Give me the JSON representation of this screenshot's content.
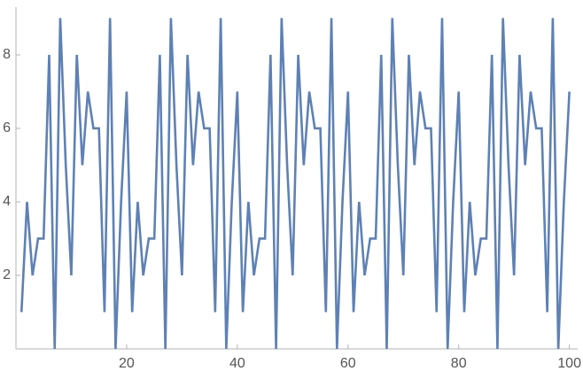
{
  "chart_data": {
    "type": "line",
    "x": [
      1,
      2,
      3,
      4,
      5,
      6,
      7,
      8,
      9,
      10,
      11,
      12,
      13,
      14,
      15,
      16,
      17,
      18,
      19,
      20,
      21,
      22,
      23,
      24,
      25,
      26,
      27,
      28,
      29,
      30,
      31,
      32,
      33,
      34,
      35,
      36,
      37,
      38,
      39,
      40,
      41,
      42,
      43,
      44,
      45,
      46,
      47,
      48,
      49,
      50,
      51,
      52,
      53,
      54,
      55,
      56,
      57,
      58,
      59,
      60,
      61,
      62,
      63,
      64,
      65,
      66,
      67,
      68,
      69,
      70,
      71,
      72,
      73,
      74,
      75,
      76,
      77,
      78,
      79,
      80,
      81,
      82,
      83,
      84,
      85,
      86,
      87,
      88,
      89,
      90,
      91,
      92,
      93,
      94,
      95,
      96,
      97,
      98,
      99,
      100
    ],
    "series": [
      {
        "color": "#5e81b5",
        "values": [
          1,
          4,
          2,
          3,
          3,
          8,
          0,
          9,
          5,
          2,
          8,
          5,
          7,
          6,
          6,
          1,
          9,
          0,
          4,
          7,
          1,
          4,
          2,
          3,
          3,
          8,
          0,
          9,
          5,
          2,
          8,
          5,
          7,
          6,
          6,
          1,
          9,
          0,
          4,
          7,
          1,
          4,
          2,
          3,
          3,
          8,
          0,
          9,
          5,
          2,
          8,
          5,
          7,
          6,
          6,
          1,
          9,
          0,
          4,
          7,
          1,
          4,
          2,
          3,
          3,
          8,
          0,
          9,
          5,
          2,
          8,
          5,
          7,
          6,
          6,
          1,
          9,
          0,
          4,
          7,
          1,
          4,
          2,
          3,
          3,
          8,
          0,
          9,
          5,
          2,
          8,
          5,
          7,
          6,
          6,
          1,
          9,
          0,
          4,
          7
        ]
      }
    ],
    "xlim": [
      0,
      101.5
    ],
    "ylim": [
      0,
      9.3
    ],
    "xticks": [
      20,
      40,
      60,
      80,
      100
    ],
    "yticks": [
      2,
      4,
      6,
      8
    ]
  }
}
